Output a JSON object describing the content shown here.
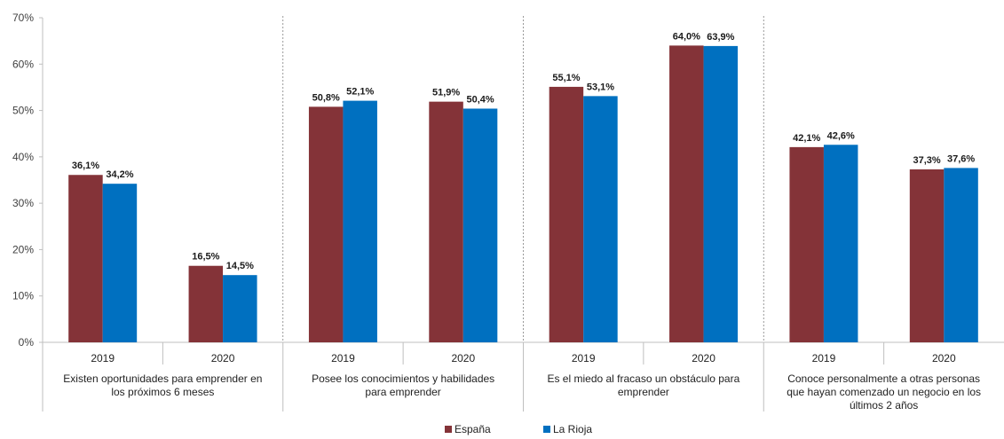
{
  "chart_data": {
    "type": "bar",
    "title": "",
    "xlabel": "",
    "ylabel": "",
    "ylim": [
      0,
      70
    ],
    "yticks": [
      0,
      10,
      20,
      30,
      40,
      50,
      60,
      70
    ],
    "ytick_labels": [
      "0%",
      "10%",
      "20%",
      "30%",
      "40%",
      "50%",
      "60%",
      "70%"
    ],
    "grid": false,
    "legend_position": "bottom-center",
    "colors": {
      "España": "#843338",
      "La Rioja": "#0070C0"
    },
    "groups": [
      {
        "label_lines": [
          "Existen oportunidades para emprender en",
          "los próximos 6 meses"
        ],
        "years": [
          "2019",
          "2020"
        ]
      },
      {
        "label_lines": [
          "Posee los conocimientos y habilidades",
          "para emprender"
        ],
        "years": [
          "2019",
          "2020"
        ]
      },
      {
        "label_lines": [
          "Es el miedo al fracaso un obstáculo para",
          "emprender"
        ],
        "years": [
          "2019",
          "2020"
        ]
      },
      {
        "label_lines": [
          "Conoce personalmente a otras personas",
          "que hayan comenzado un negocio en los",
          "últimos 2 años"
        ],
        "years": [
          "2019",
          "2020"
        ]
      }
    ],
    "series": [
      {
        "name": "España",
        "values": [
          36.1,
          16.5,
          50.8,
          51.9,
          55.1,
          64.0,
          42.1,
          37.3
        ],
        "labels": [
          "36,1%",
          "16,5%",
          "50,8%",
          "51,9%",
          "55,1%",
          "64,0%",
          "42,1%",
          "37,3%"
        ]
      },
      {
        "name": "La Rioja",
        "values": [
          34.2,
          14.5,
          52.1,
          50.4,
          53.1,
          63.9,
          42.6,
          37.6
        ],
        "labels": [
          "34,2%",
          "14,5%",
          "52,1%",
          "50,4%",
          "53,1%",
          "63,9%",
          "42,6%",
          "37,6%"
        ]
      }
    ]
  }
}
